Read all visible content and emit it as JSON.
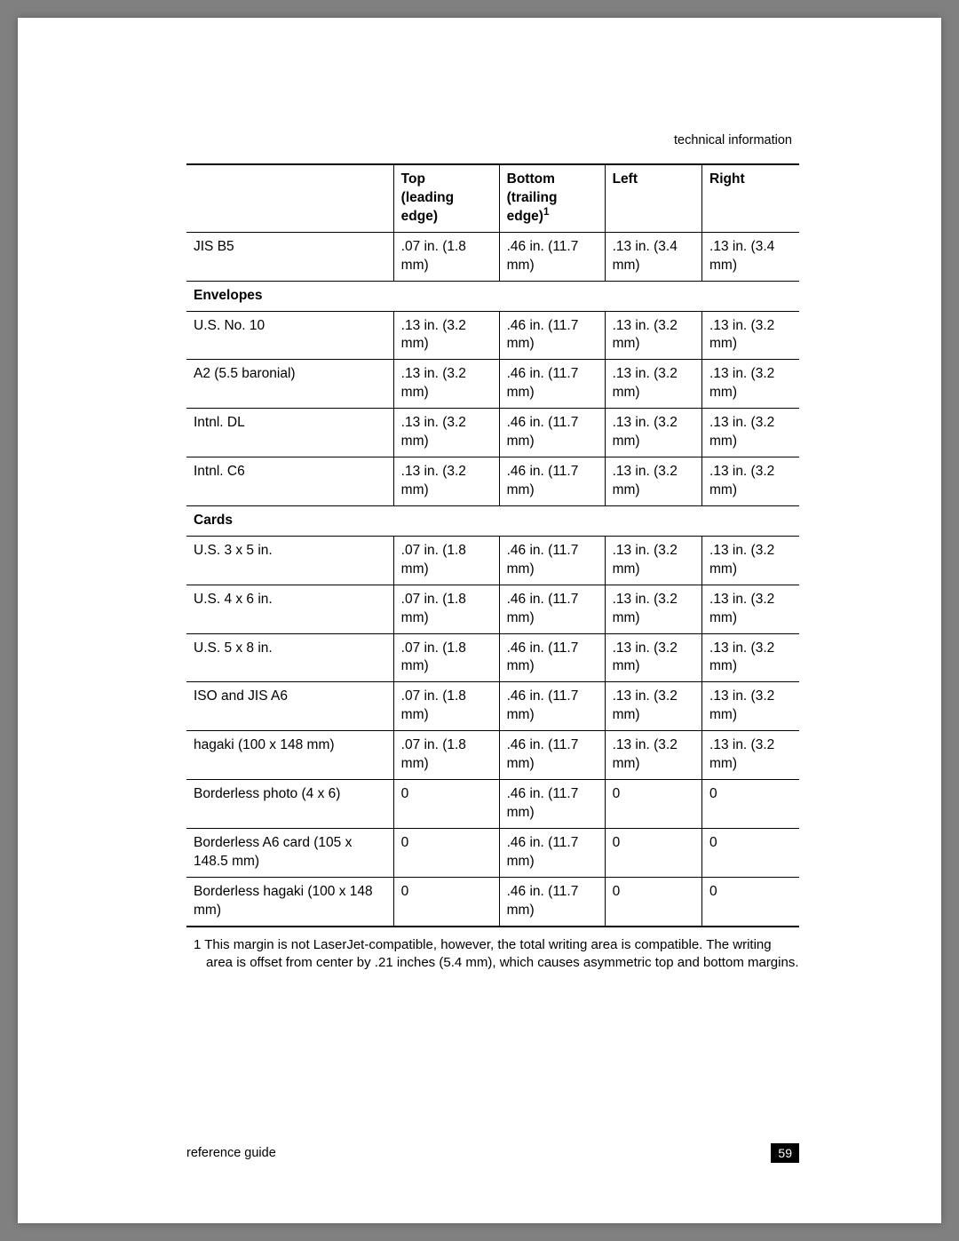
{
  "header": {
    "section": "technical information"
  },
  "table": {
    "columns": [
      {
        "label": "",
        "sub": ""
      },
      {
        "label": "Top",
        "sub": "(leading edge)"
      },
      {
        "label": "Bottom",
        "sub": "(trailing edge)",
        "sup": "1"
      },
      {
        "label": "Left",
        "sub": ""
      },
      {
        "label": "Right",
        "sub": ""
      }
    ],
    "rows": [
      {
        "type": "data",
        "cells": [
          "JIS B5",
          ".07 in. (1.8 mm)",
          ".46 in. (11.7 mm)",
          ".13 in. (3.4 mm)",
          ".13 in. (3.4 mm)"
        ]
      },
      {
        "type": "section",
        "label": "Envelopes"
      },
      {
        "type": "data",
        "cells": [
          "U.S. No. 10",
          ".13 in. (3.2 mm)",
          ".46 in. (11.7 mm)",
          ".13 in. (3.2 mm)",
          ".13 in. (3.2 mm)"
        ]
      },
      {
        "type": "data",
        "cells": [
          "A2 (5.5 baronial)",
          ".13 in. (3.2 mm)",
          ".46 in. (11.7 mm)",
          ".13 in. (3.2 mm)",
          ".13 in. (3.2 mm)"
        ]
      },
      {
        "type": "data",
        "cells": [
          "Intnl. DL",
          ".13 in. (3.2 mm)",
          ".46 in. (11.7 mm)",
          ".13 in. (3.2 mm)",
          ".13 in. (3.2 mm)"
        ]
      },
      {
        "type": "data",
        "cells": [
          "Intnl. C6",
          ".13 in. (3.2 mm)",
          ".46 in. (11.7 mm)",
          ".13 in. (3.2 mm)",
          ".13 in. (3.2 mm)"
        ]
      },
      {
        "type": "section",
        "label": "Cards"
      },
      {
        "type": "data",
        "cells": [
          "U.S. 3 x 5 in.",
          ".07 in. (1.8 mm)",
          ".46 in. (11.7 mm)",
          ".13 in. (3.2 mm)",
          ".13 in. (3.2 mm)"
        ]
      },
      {
        "type": "data",
        "cells": [
          "U.S. 4 x 6 in.",
          ".07 in. (1.8 mm)",
          ".46 in. (11.7 mm)",
          ".13 in. (3.2 mm)",
          ".13 in. (3.2 mm)"
        ]
      },
      {
        "type": "data",
        "cells": [
          "U.S. 5 x 8 in.",
          ".07 in. (1.8 mm)",
          ".46 in. (11.7 mm)",
          ".13 in. (3.2 mm)",
          ".13 in. (3.2 mm)"
        ]
      },
      {
        "type": "data",
        "cells": [
          "ISO and JIS A6",
          ".07 in. (1.8 mm)",
          ".46 in. (11.7 mm)",
          ".13 in. (3.2 mm)",
          ".13 in. (3.2 mm)"
        ]
      },
      {
        "type": "data",
        "cells": [
          "hagaki (100 x 148 mm)",
          ".07 in. (1.8 mm)",
          ".46 in. (11.7 mm)",
          ".13 in. (3.2 mm)",
          ".13 in. (3.2 mm)"
        ]
      },
      {
        "type": "data",
        "cells": [
          "Borderless photo (4 x 6)",
          "0",
          ".46 in. (11.7 mm)",
          "0",
          "0"
        ]
      },
      {
        "type": "data",
        "cells": [
          "Borderless A6 card (105 x 148.5 mm)",
          "0",
          ".46 in. (11.7 mm)",
          "0",
          "0"
        ]
      },
      {
        "type": "data",
        "cells": [
          "Borderless hagaki (100 x 148 mm)",
          "0",
          ".46 in. (11.7 mm)",
          "0",
          "0"
        ]
      }
    ]
  },
  "footnote": {
    "marker": "1",
    "text": "This margin is not LaserJet-compatible, however, the total writing area is compatible. The writing area is offset from center by .21 inches (5.4 mm), which causes asymmetric top and bottom margins."
  },
  "footer": {
    "left": "reference guide",
    "page_number": "59"
  }
}
